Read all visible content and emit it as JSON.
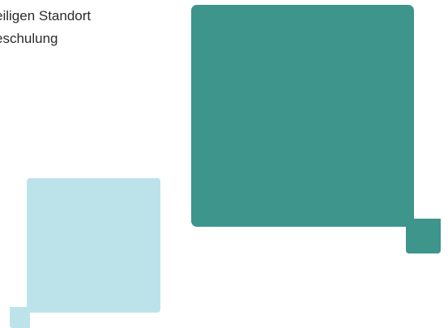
{
  "text": {
    "line1": "eiligen Standort",
    "line2": "eschulung"
  },
  "colors": {
    "teal": "#3d958c",
    "light_blue": "#bde3ea",
    "text": "#2b2b2b",
    "background": "#ffffff"
  }
}
